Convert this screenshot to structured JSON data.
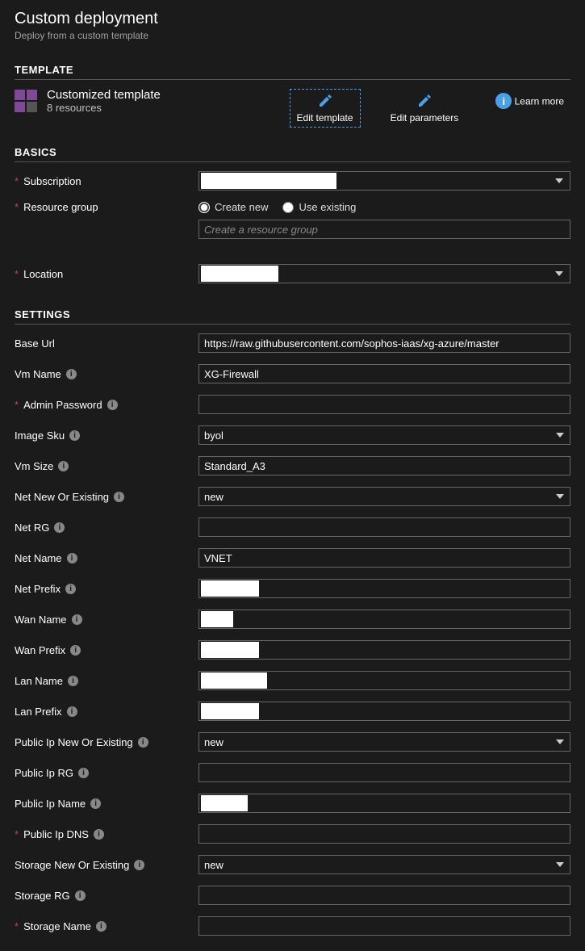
{
  "header": {
    "title": "Custom deployment",
    "subtitle": "Deploy from a custom template"
  },
  "sections": {
    "template": "TEMPLATE",
    "basics": "BASICS",
    "settings": "SETTINGS"
  },
  "template": {
    "title": "Customized template",
    "subtitle": "8 resources",
    "icon_color": "#804998",
    "actions": {
      "edit_template": "Edit template",
      "edit_parameters": "Edit parameters",
      "learn_more": "Learn more"
    },
    "accent_color": "#4aa0e6"
  },
  "basics": {
    "subscription_label": "Subscription",
    "subscription_value": "",
    "resource_group_label": "Resource group",
    "rg_create_new": "Create new",
    "rg_use_existing": "Use existing",
    "rg_placeholder": "Create a resource group",
    "rg_value": "",
    "location_label": "Location",
    "location_value": ""
  },
  "settings": {
    "fields": {
      "base_url": {
        "label": "Base Url",
        "value": "https://raw.githubusercontent.com/sophos-iaas/xg-azure/master",
        "required": false,
        "info": false,
        "type": "text"
      },
      "vm_name": {
        "label": "Vm Name",
        "value": "XG-Firewall",
        "required": false,
        "info": true,
        "type": "text"
      },
      "admin_password": {
        "label": "Admin Password",
        "value": "",
        "required": true,
        "info": true,
        "type": "text"
      },
      "image_sku": {
        "label": "Image Sku",
        "value": "byol",
        "required": false,
        "info": true,
        "type": "select"
      },
      "vm_size": {
        "label": "Vm Size",
        "value": "Standard_A3",
        "required": false,
        "info": true,
        "type": "text"
      },
      "net_new_or_existing": {
        "label": "Net New Or Existing",
        "value": "new",
        "required": false,
        "info": true,
        "type": "select"
      },
      "net_rg": {
        "label": "Net RG",
        "value": "",
        "required": false,
        "info": true,
        "type": "text"
      },
      "net_name": {
        "label": "Net Name",
        "value": "VNET",
        "required": false,
        "info": true,
        "type": "text"
      },
      "net_prefix": {
        "label": "Net Prefix",
        "value": "",
        "required": false,
        "info": true,
        "type": "masked"
      },
      "wan_name": {
        "label": "Wan Name",
        "value": "",
        "required": false,
        "info": true,
        "type": "masked-short"
      },
      "wan_prefix": {
        "label": "Wan Prefix",
        "value": "",
        "required": false,
        "info": true,
        "type": "masked"
      },
      "lan_name": {
        "label": "Lan Name",
        "value": "",
        "required": false,
        "info": true,
        "type": "masked-med"
      },
      "lan_prefix": {
        "label": "Lan Prefix",
        "value": "",
        "required": false,
        "info": true,
        "type": "masked"
      },
      "public_ip_new_or_existing": {
        "label": "Public Ip New Or Existing",
        "value": "new",
        "required": false,
        "info": true,
        "type": "select"
      },
      "public_ip_rg": {
        "label": "Public Ip RG",
        "value": "",
        "required": false,
        "info": true,
        "type": "text"
      },
      "public_ip_name": {
        "label": "Public Ip Name",
        "value": "",
        "required": false,
        "info": true,
        "type": "masked-short2"
      },
      "public_ip_dns": {
        "label": "Public Ip DNS",
        "value": "",
        "required": true,
        "info": true,
        "type": "text"
      },
      "storage_new_or_existing": {
        "label": "Storage New Or Existing",
        "value": "new",
        "required": false,
        "info": true,
        "type": "select"
      },
      "storage_rg": {
        "label": "Storage RG",
        "value": "",
        "required": false,
        "info": true,
        "type": "text"
      },
      "storage_name": {
        "label": "Storage Name",
        "value": "",
        "required": true,
        "info": true,
        "type": "text"
      }
    },
    "masked_widths": {
      "masked": 72,
      "masked-short": 40,
      "masked-med": 82,
      "masked-short2": 58
    }
  },
  "colors": {
    "background": "#1b1b1b",
    "text": "#ffffff",
    "muted": "#a0a0a0",
    "border": "#666666",
    "required": "#cc4444",
    "accent": "#4aa0e6",
    "template_icon": "#804998"
  }
}
